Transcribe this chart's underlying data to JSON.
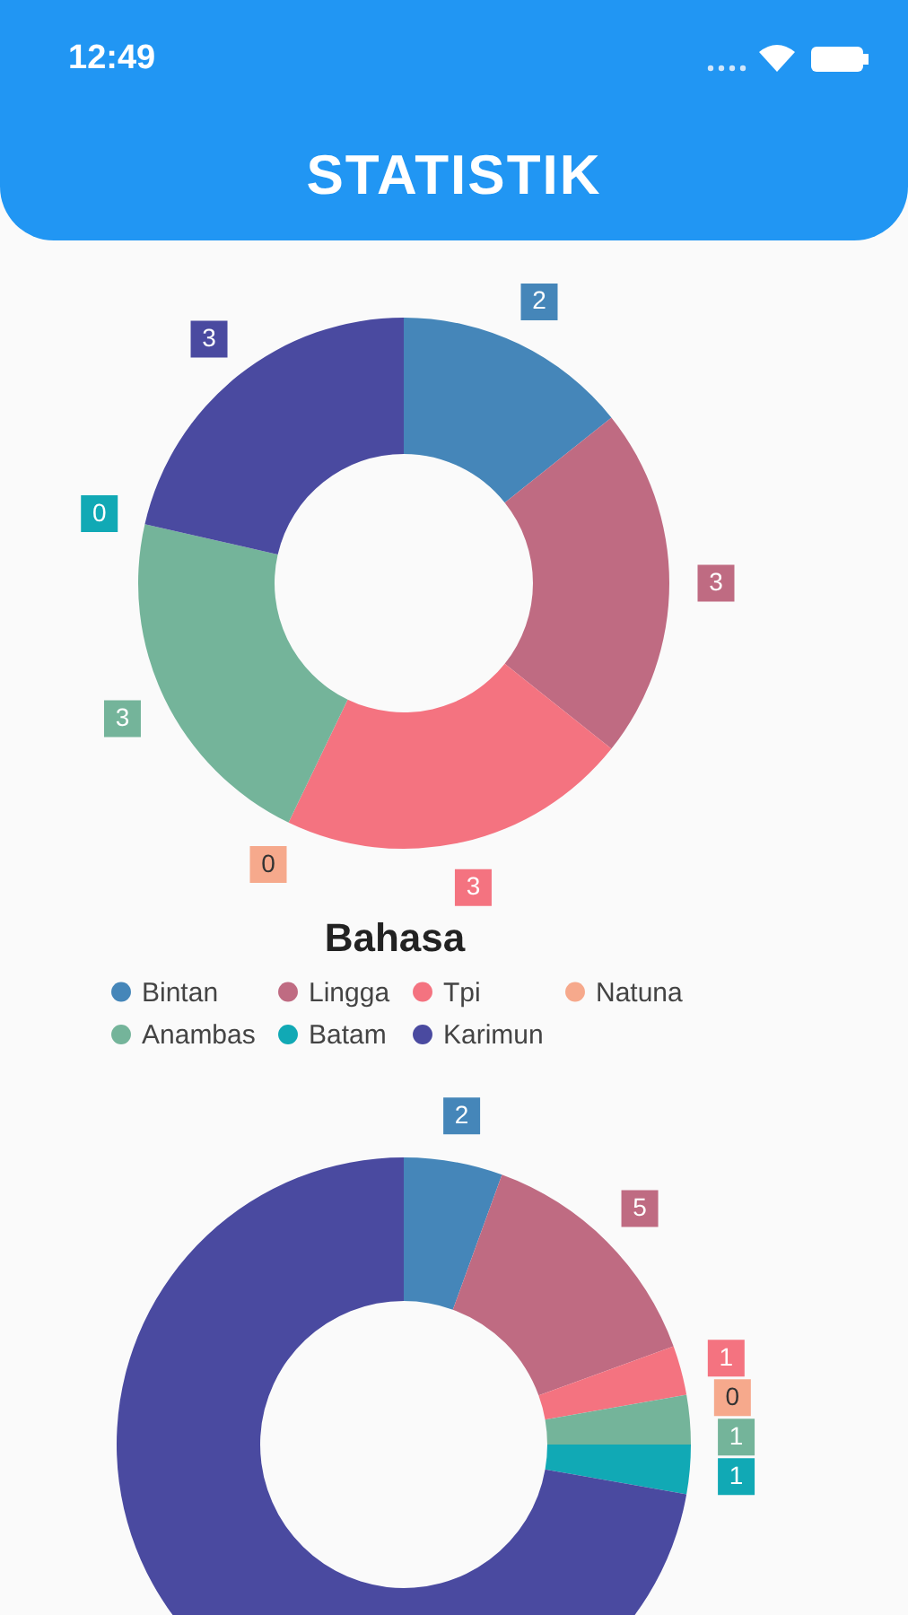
{
  "chart_data": [
    {
      "type": "donut",
      "legend_title": "Bahasa",
      "annotations": [
        "12:49",
        "STATISTIK"
      ],
      "categories": [
        "Bintan",
        "Lingga",
        "Tpi",
        "Natuna",
        "Anambas",
        "Batam",
        "Karimun"
      ],
      "values": [
        2,
        3,
        3,
        0,
        3,
        0,
        3
      ],
      "colors": [
        "#4586b9",
        "#bf6b82",
        "#f47380",
        "#f6a98c",
        "#74b49a",
        "#11a9b5",
        "#4a4aa0"
      ],
      "value_labels": [
        "2",
        "3",
        "3",
        "0",
        "3",
        "0",
        "3"
      ],
      "legend": "bottom"
    },
    {
      "type": "donut",
      "categories": [
        null,
        null,
        null,
        null,
        null,
        null,
        null
      ],
      "values": [
        2,
        5,
        1,
        0,
        1,
        1,
        26
      ],
      "colors": [
        "#4586b9",
        "#bf6b82",
        "#f47380",
        "#f6a98c",
        "#74b49a",
        "#11a9b5",
        "#4a4aa0"
      ],
      "value_labels": [
        "2",
        "5",
        "1",
        "0",
        "1",
        "1",
        null
      ]
    }
  ]
}
